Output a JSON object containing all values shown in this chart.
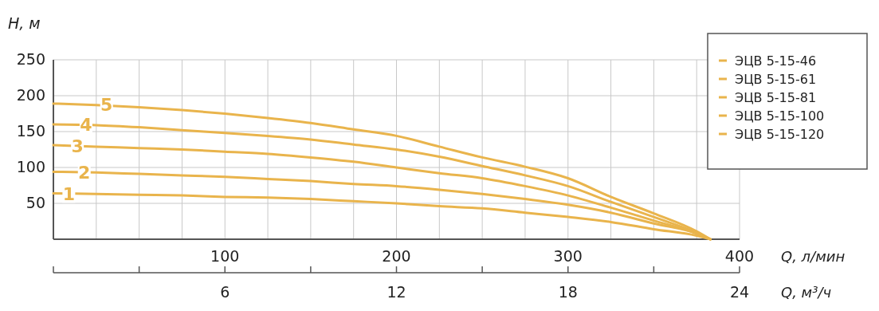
{
  "chart_data": {
    "type": "line",
    "xlabel": "Q, л/мин",
    "ylabel": "H, м",
    "x2label": "Q, м³/ч",
    "x": [
      0,
      25,
      50,
      75,
      100,
      125,
      150,
      175,
      200,
      225,
      250,
      275,
      300,
      325,
      350,
      375,
      383
    ],
    "series": [
      {
        "name": "ЭЦВ 5-15-46",
        "color": "#e9b44c",
        "values": [
          64,
          63,
          62,
          61,
          59,
          58,
          56,
          53,
          50,
          46,
          43,
          37,
          31,
          24,
          14,
          5,
          0
        ]
      },
      {
        "name": "ЭЦВ 5-15-61",
        "color": "#e9b44c",
        "values": [
          94,
          93,
          91,
          89,
          87,
          84,
          81,
          77,
          74,
          69,
          63,
          56,
          48,
          37,
          22,
          8,
          0
        ]
      },
      {
        "name": "ЭЦВ 5-15-81",
        "color": "#e9b44c",
        "values": [
          131,
          129,
          127,
          125,
          122,
          119,
          114,
          108,
          100,
          92,
          85,
          74,
          61,
          44,
          26,
          8,
          0
        ]
      },
      {
        "name": "ЭЦВ 5-15-100",
        "color": "#e9b44c",
        "values": [
          160,
          159,
          156,
          152,
          148,
          144,
          139,
          132,
          125,
          115,
          102,
          89,
          74,
          52,
          31,
          9,
          0
        ]
      },
      {
        "name": "ЭЦВ 5-15-120",
        "color": "#e9b44c",
        "values": [
          189,
          187,
          184,
          180,
          175,
          169,
          162,
          153,
          144,
          129,
          114,
          101,
          85,
          59,
          36,
          11,
          0
        ]
      }
    ],
    "annotations": [
      {
        "text": "1",
        "x": 9,
        "y": 63
      },
      {
        "text": "2",
        "x": 18,
        "y": 93
      },
      {
        "text": "3",
        "x": 14,
        "y": 130
      },
      {
        "text": "4",
        "x": 19,
        "y": 159
      },
      {
        "text": "5",
        "x": 31,
        "y": 187
      }
    ],
    "xlim": [
      0,
      400
    ],
    "xticks": [
      {
        "value": 0,
        "label": null
      },
      {
        "value": 25,
        "label": null
      },
      {
        "value": 50,
        "label": null
      },
      {
        "value": 75,
        "label": null
      },
      100,
      {
        "value": 125,
        "label": null
      },
      {
        "value": 150,
        "label": null
      },
      {
        "value": 175,
        "label": null
      },
      200,
      {
        "value": 225,
        "label": null
      },
      {
        "value": 250,
        "label": null
      },
      {
        "value": 275,
        "label": null
      },
      300,
      {
        "value": 325,
        "label": null
      },
      {
        "value": 350,
        "label": null
      },
      {
        "value": 375,
        "label": null
      },
      400
    ],
    "x2lim": [
      0,
      24
    ],
    "x2ticks": [
      {
        "value": 0,
        "label": null
      },
      {
        "value": 3,
        "label": null
      },
      6,
      {
        "value": 9,
        "label": null
      },
      12,
      {
        "value": 15,
        "label": null
      },
      18,
      {
        "value": 21,
        "label": null
      },
      24
    ],
    "ylim": [
      0,
      250
    ],
    "yticks": [
      50,
      100,
      150,
      200,
      250
    ],
    "grid": true,
    "legend": "top right",
    "marker": "none",
    "line_style": "solid"
  }
}
